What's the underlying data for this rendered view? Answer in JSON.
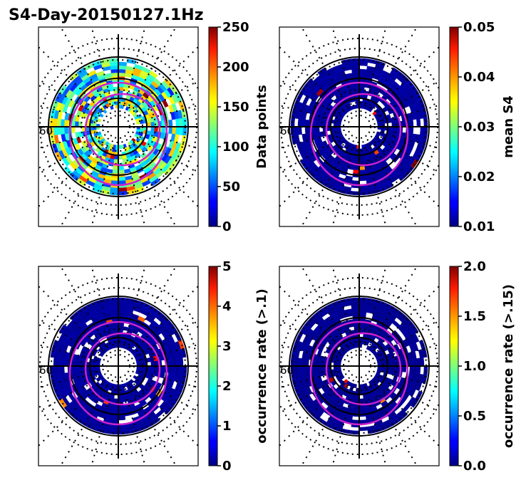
{
  "figure": {
    "title": "S4-Day-20150127.1Hz"
  },
  "chart_data": [
    {
      "type": "heatmap",
      "projection": "polar",
      "colormap": "jet",
      "colorbar_label": "Data points",
      "clim": [
        0,
        250
      ],
      "colorbar_ticks": [
        "0",
        "50",
        "100",
        "150",
        "200",
        "250"
      ],
      "polar_label": "60",
      "data_level": 0.45
    },
    {
      "type": "heatmap",
      "projection": "polar",
      "colormap": "jet",
      "colorbar_label": "mean S4",
      "clim": [
        0.01,
        0.05
      ],
      "colorbar_ticks": [
        "0.01",
        "0.02",
        "0.03",
        "0.04",
        "0.05"
      ],
      "polar_label": "60",
      "data_level": 0.03
    },
    {
      "type": "heatmap",
      "projection": "polar",
      "colormap": "jet",
      "colorbar_label": "occurrence rate (>.1)",
      "clim": [
        0,
        5
      ],
      "colorbar_ticks": [
        "0",
        "1",
        "2",
        "3",
        "4",
        "5"
      ],
      "polar_label": "60",
      "data_level": 0.03
    },
    {
      "type": "heatmap",
      "projection": "polar",
      "colormap": "jet",
      "colorbar_label": "occurrence rate (>.15)",
      "clim": [
        0,
        2
      ],
      "colorbar_ticks": [
        "0.0",
        "0.5",
        "1.0",
        "1.5",
        "2.0"
      ],
      "polar_label": "60",
      "data_level": 0.02
    }
  ],
  "colors": {
    "oval": "#cc22cc",
    "grid": "#000000"
  }
}
